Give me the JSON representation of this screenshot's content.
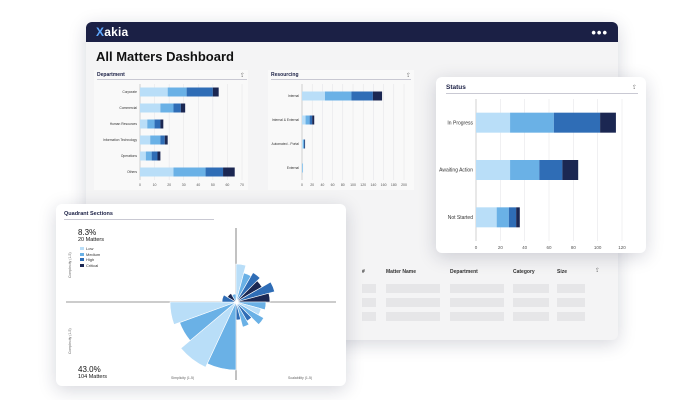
{
  "app": {
    "logo_x": "X",
    "logo_rest": "akia",
    "menu_dots": "•••"
  },
  "page": {
    "title": "All Matters Dashboard"
  },
  "colors": {
    "low": "#b9def8",
    "medium": "#6ab1e6",
    "high": "#2f6db6",
    "critical": "#1b2752",
    "header": "#1b2045"
  },
  "department": {
    "title": "Department",
    "icon": "export-icon",
    "chart_data": {
      "type": "bar",
      "orientation": "horizontal",
      "stacked": true,
      "categories": [
        "Corporate",
        "Commercial",
        "Human Resources",
        "Information Technology",
        "Operations",
        "Others"
      ],
      "series": [
        {
          "values": [
            19,
            14,
            5,
            7,
            4,
            23
          ]
        },
        {
          "values": [
            13,
            9,
            5,
            7,
            4,
            22
          ]
        },
        {
          "values": [
            18,
            5,
            4,
            3,
            4,
            12
          ]
        },
        {
          "values": [
            4,
            3,
            2,
            2,
            2,
            8
          ]
        }
      ],
      "xticks": [
        "0",
        "10",
        "20",
        "30",
        "40",
        "50",
        "60",
        "70"
      ],
      "xlim": [
        0,
        70
      ],
      "grid": true
    }
  },
  "resourcing": {
    "title": "Resourcing",
    "icon": "export-icon",
    "chart_data": {
      "type": "bar",
      "orientation": "horizontal",
      "stacked": true,
      "categories": [
        "Internal",
        "Internal & External",
        "Automated - Portal",
        "External"
      ],
      "series": [
        {
          "values": [
            45,
            7,
            2,
            1
          ]
        },
        {
          "values": [
            52,
            8,
            2,
            1
          ]
        },
        {
          "values": [
            42,
            5,
            1,
            0
          ]
        },
        {
          "values": [
            18,
            4,
            1,
            0
          ]
        }
      ],
      "xticks": [
        "0",
        "20",
        "40",
        "60",
        "80",
        "100",
        "120",
        "140",
        "160",
        "180",
        "200"
      ],
      "xlim": [
        0,
        200
      ],
      "grid": true
    }
  },
  "status": {
    "title": "Status",
    "icon": "export-icon",
    "chart_data": {
      "type": "bar",
      "orientation": "horizontal",
      "stacked": true,
      "categories": [
        "In Progress",
        "Awaiting Action",
        "Not Started"
      ],
      "series": [
        {
          "values": [
            28,
            28,
            17
          ]
        },
        {
          "values": [
            36,
            24,
            10
          ]
        },
        {
          "values": [
            38,
            19,
            6
          ]
        },
        {
          "values": [
            13,
            13,
            3
          ]
        }
      ],
      "xticks": [
        "0",
        "20",
        "40",
        "60",
        "80",
        "100",
        "120"
      ],
      "xlim": [
        0,
        120
      ],
      "grid": true
    }
  },
  "table": {
    "columns": [
      "#",
      "Matter Name",
      "Department",
      "Category",
      "Size"
    ],
    "icon": "export-icon"
  },
  "quadrant": {
    "title": "Quadrant Sections",
    "top": {
      "pct": "8.3%",
      "count": "20 Matters"
    },
    "bottom": {
      "pct": "43.0%",
      "count": "104 Matters"
    },
    "legend": [
      "Low",
      "Medium",
      "High",
      "Critical"
    ],
    "y_label_top": "Complexity (1-5)",
    "y_label_bottom": "Complexity (1-5)",
    "x_label_left": "Simplicity (1-5)",
    "x_label_right": "Scalability (1-5)"
  }
}
